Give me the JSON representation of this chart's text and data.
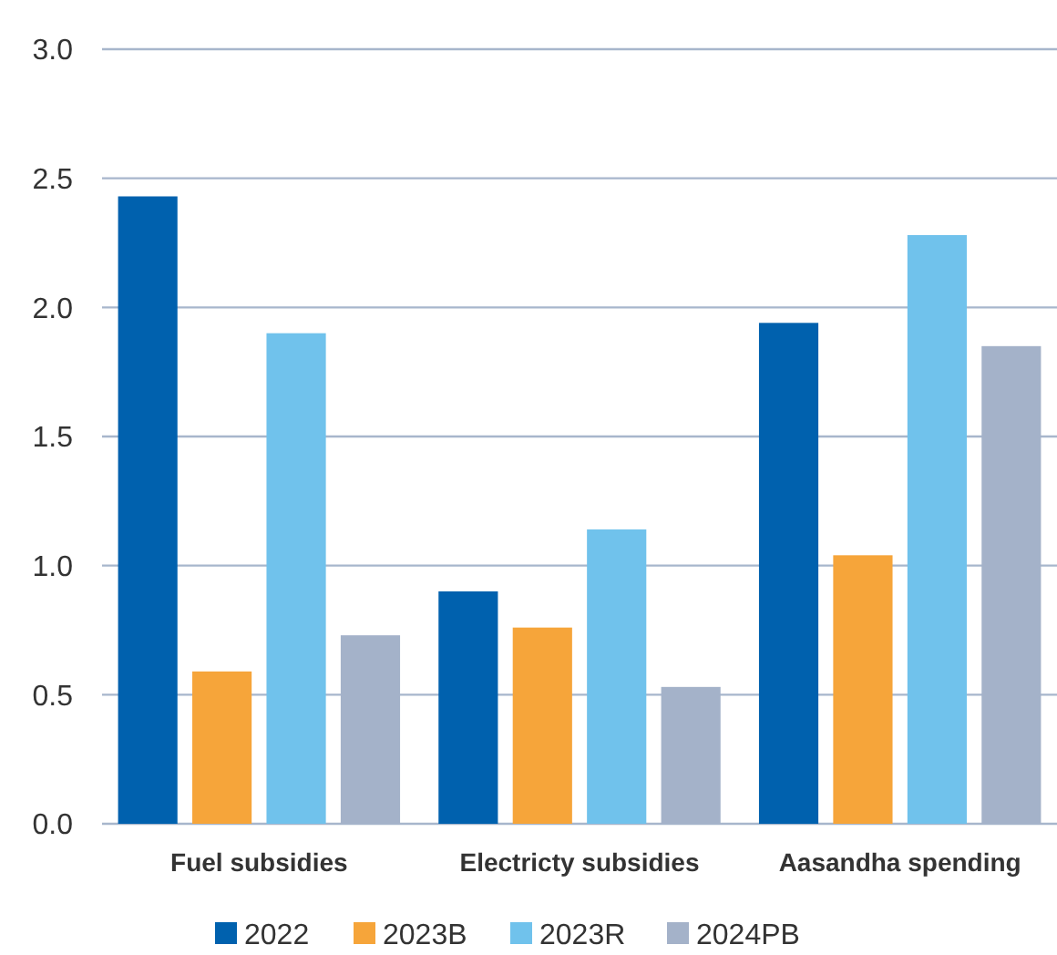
{
  "chart_data": {
    "type": "bar",
    "categories": [
      "Fuel subsidies",
      "Electricty subsidies",
      "Aasandha spending"
    ],
    "series": [
      {
        "name": "2022",
        "color": "#0061ae",
        "values": [
          2.43,
          0.9,
          1.94
        ]
      },
      {
        "name": "2023B",
        "color": "#f6a53a",
        "values": [
          0.59,
          0.76,
          1.04
        ]
      },
      {
        "name": "2023R",
        "color": "#70c2ec",
        "values": [
          1.9,
          1.14,
          2.28
        ]
      },
      {
        "name": "2024PB",
        "color": "#a4b2c9",
        "values": [
          0.73,
          0.53,
          1.85
        ]
      }
    ],
    "ylim": [
      0,
      3
    ],
    "yticks": [
      {
        "value": 0,
        "label": "0.0"
      },
      {
        "value": 0.5,
        "label": "0.5"
      },
      {
        "value": 1,
        "label": "1.0"
      },
      {
        "value": 1.5,
        "label": "1.5"
      },
      {
        "value": 2,
        "label": "2.0"
      },
      {
        "value": 2.5,
        "label": "2.5"
      },
      {
        "value": 3,
        "label": "3.0"
      }
    ],
    "grid": "y",
    "legend": "bottom"
  }
}
